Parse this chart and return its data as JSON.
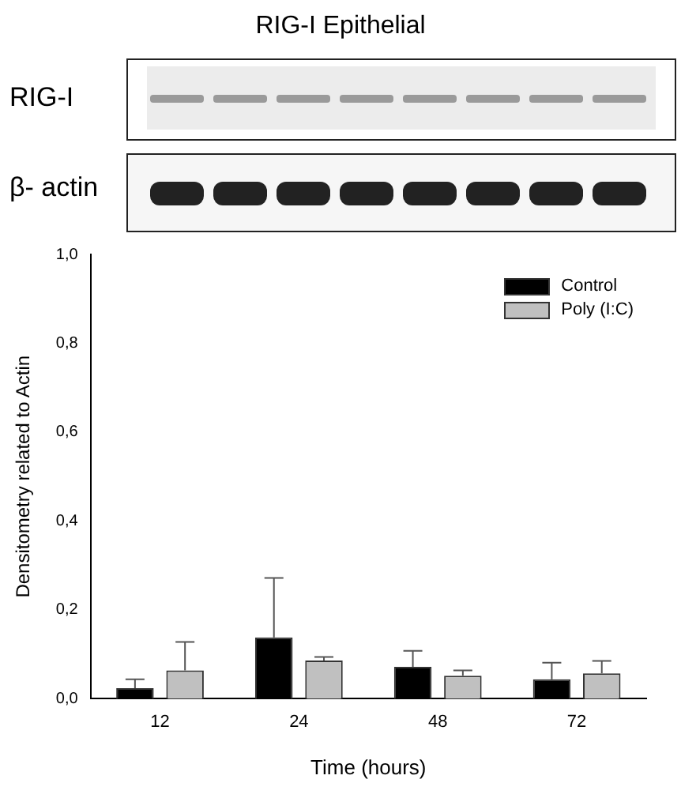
{
  "chart_data": {
    "type": "bar",
    "title": "RIG-I Epithelial",
    "xlabel": "Time (hours)",
    "ylabel": "Densitometry related to Actin",
    "annotations": [
      "RIG-I",
      "β- actin"
    ],
    "categories": [
      "12",
      "24",
      "48",
      "72"
    ],
    "series": [
      {
        "name": "Control",
        "color": "#000000",
        "values": [
          0.024,
          0.138,
          0.072,
          0.044
        ],
        "errors": [
          [
            0.024,
            0.044
          ],
          [
            0.138,
            0.272
          ],
          [
            0.072,
            0.108
          ],
          [
            0.044,
            0.081
          ]
        ]
      },
      {
        "name": "Poly (I:C)",
        "color": "#c0c0c0",
        "values": [
          0.064,
          0.086,
          0.052,
          0.057
        ],
        "errors": [
          [
            0.064,
            0.128
          ],
          [
            0.086,
            0.094
          ],
          [
            0.052,
            0.064
          ],
          [
            0.057,
            0.085
          ]
        ]
      }
    ],
    "ylim": [
      0,
      1
    ],
    "yticks": [
      {
        "value": 0,
        "label": "0,0"
      },
      {
        "value": 0.2,
        "label": "0,2"
      },
      {
        "value": 0.4,
        "label": "0,4"
      },
      {
        "value": 0.6,
        "label": "0,6"
      },
      {
        "value": 0.8,
        "label": "0,8"
      },
      {
        "value": 1,
        "label": "1,0"
      }
    ],
    "grid": false,
    "legend": "top right"
  }
}
